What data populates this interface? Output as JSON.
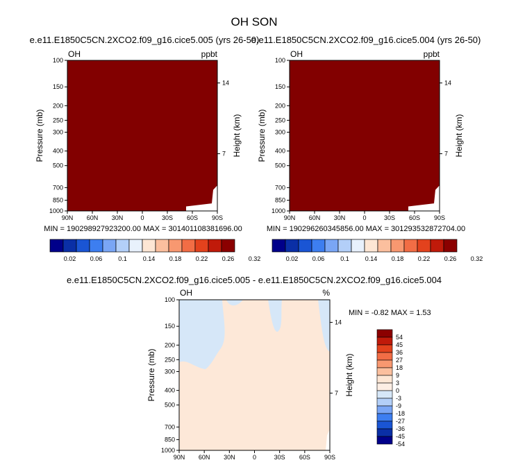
{
  "page": {
    "title": "OH SON"
  },
  "palette": {
    "dark_red": "#800000",
    "fill_left": "#820000",
    "diff_base": "#fde8d8",
    "diff_blue": "#d6e7f8"
  },
  "chart_data": [
    {
      "type": "heatmap",
      "title": "e.e11.E1850C5CN.2XCO2.f09_g16.cice5.005 (yrs 26-50)",
      "left_label": "OH",
      "right_label": "ppbt",
      "ylabel": "Pressure (mb)",
      "ylabel_right": "Height (km)",
      "x_ticks": [
        "90N",
        "60N",
        "30N",
        "0",
        "30S",
        "60S",
        "90S"
      ],
      "y_ticks": [
        "100",
        "150",
        "200",
        "250",
        "300",
        "400",
        "500",
        "700",
        "850",
        "1000"
      ],
      "y_right_ticks": [
        "14",
        "7"
      ],
      "stats": "MIN = 190298927923200.00   MAX = 301401108381696.00",
      "colorbar_labels": [
        "0.02",
        "0.06",
        "0.1",
        "0.14",
        "0.18",
        "0.22",
        "0.26",
        "0.32"
      ],
      "colorbar_colors": [
        "#00008a",
        "#0a2fa6",
        "#1a55d4",
        "#3d7ef0",
        "#7aa6f5",
        "#b3cff8",
        "#e8f1fc",
        "#fde6d4",
        "#fbbf9e",
        "#f89870",
        "#f26d45",
        "#e3421d",
        "#c01a0a",
        "#8b0000"
      ]
    },
    {
      "type": "heatmap",
      "title": "e.e11.E1850C5CN.2XCO2.f09_g16.cice5.004 (yrs 26-50)",
      "left_label": "OH",
      "right_label": "ppbt",
      "ylabel": "Pressure (mb)",
      "ylabel_right": "Height (km)",
      "x_ticks": [
        "90N",
        "60N",
        "30N",
        "0",
        "30S",
        "60S",
        "90S"
      ],
      "y_ticks": [
        "100",
        "150",
        "200",
        "250",
        "300",
        "400",
        "500",
        "700",
        "850",
        "1000"
      ],
      "y_right_ticks": [
        "14",
        "7"
      ],
      "stats": "MIN = 190296260345856.00   MAX = 301293532872704.00",
      "colorbar_labels": [
        "0.02",
        "0.06",
        "0.1",
        "0.14",
        "0.18",
        "0.22",
        "0.26",
        "0.32"
      ],
      "colorbar_colors": [
        "#00008a",
        "#0a2fa6",
        "#1a55d4",
        "#3d7ef0",
        "#7aa6f5",
        "#b3cff8",
        "#e8f1fc",
        "#fde6d4",
        "#fbbf9e",
        "#f89870",
        "#f26d45",
        "#e3421d",
        "#c01a0a",
        "#8b0000"
      ]
    },
    {
      "type": "heatmap",
      "title": "e.e11.E1850C5CN.2XCO2.f09_g16.cice5.005 - e.e11.E1850C5CN.2XCO2.f09_g16.cice5.004",
      "left_label": "OH",
      "right_label": "%",
      "ylabel": "Pressure (mb)",
      "ylabel_right": "Height (km)",
      "x_ticks": [
        "90N",
        "60N",
        "30N",
        "0",
        "30S",
        "60S",
        "90S"
      ],
      "y_ticks": [
        "100",
        "150",
        "200",
        "250",
        "300",
        "400",
        "500",
        "700",
        "850",
        "1000"
      ],
      "y_right_ticks": [
        "14",
        "7"
      ],
      "stats": "MIN =  -0.82   MAX =   1.53",
      "colorbar_labels": [
        "54",
        "45",
        "36",
        "27",
        "18",
        "9",
        "3",
        "0",
        "-3",
        "-9",
        "-18",
        "-27",
        "-36",
        "-45",
        "-54"
      ],
      "colorbar_colors": [
        "#8b0000",
        "#c01a0a",
        "#e3421d",
        "#f26d45",
        "#f89870",
        "#fbbf9e",
        "#fde6d4",
        "#fdeee4",
        "#d6e7f8",
        "#b3cff8",
        "#7aa6f5",
        "#3d7ef0",
        "#1a55d4",
        "#0a2fa6",
        "#00008a"
      ]
    }
  ]
}
